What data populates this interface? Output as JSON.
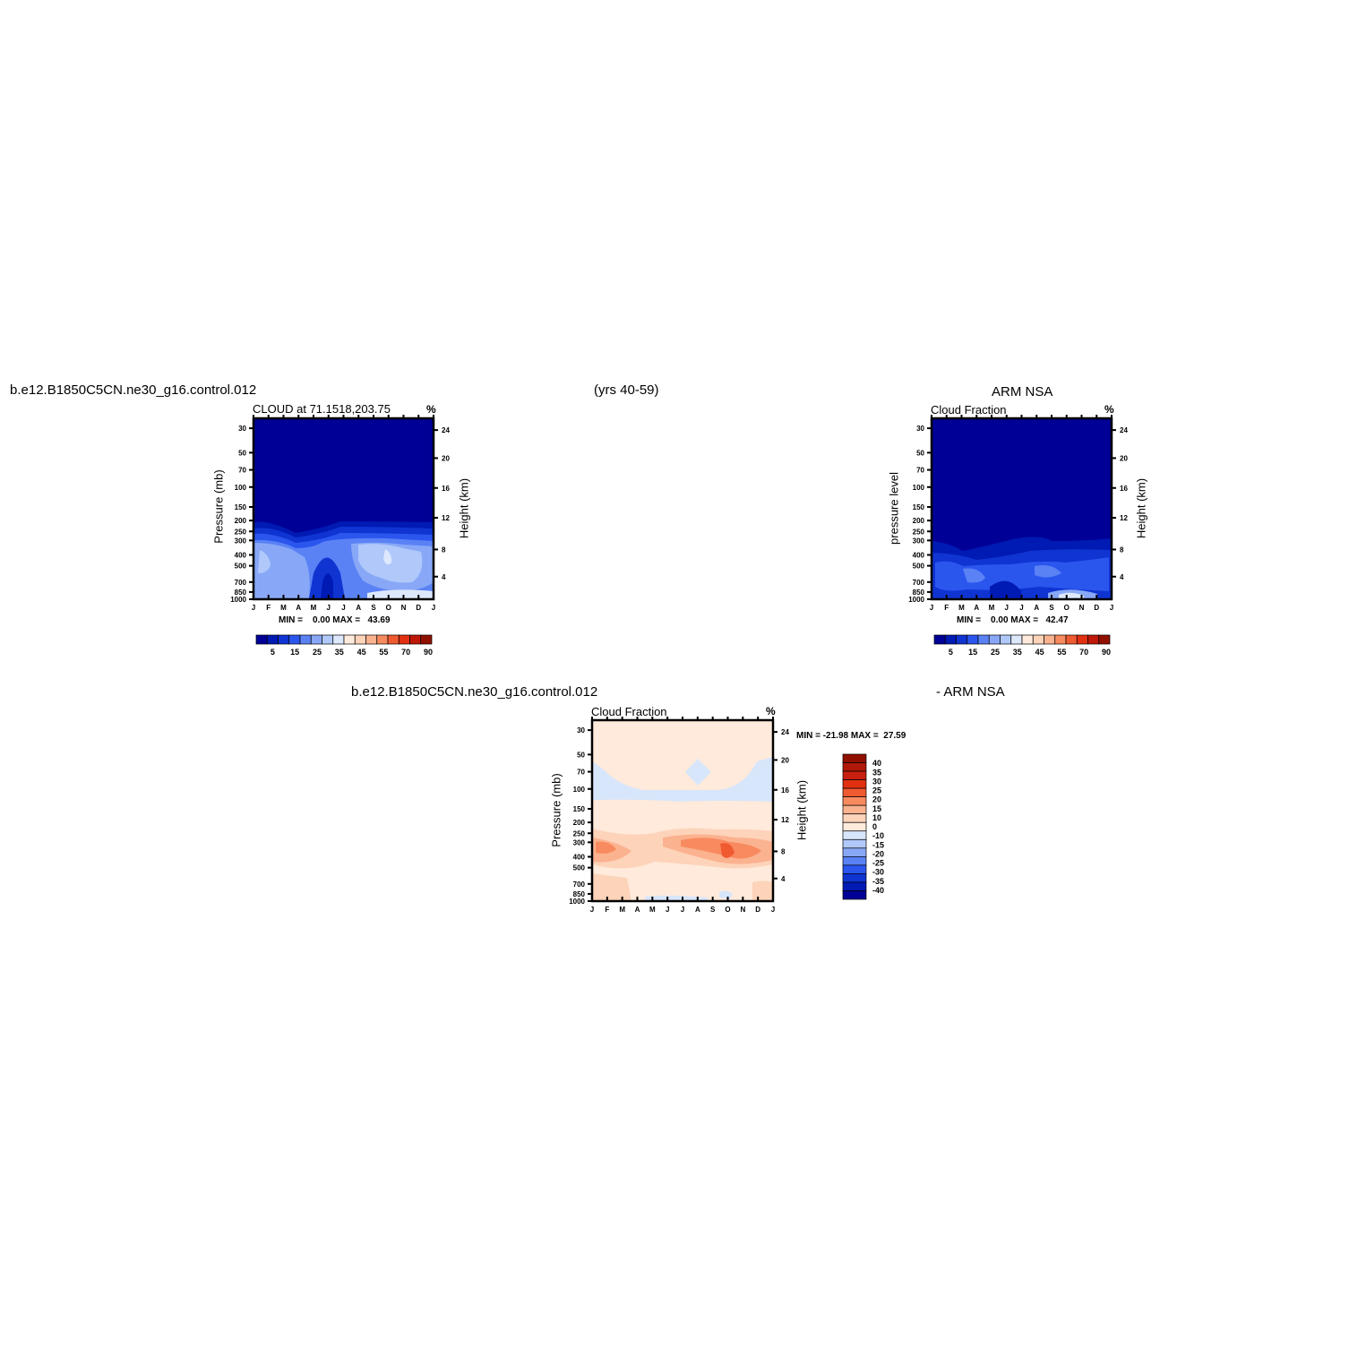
{
  "header": {
    "case_left": "b.e12.B1850C5CN.ne30_g16.control.012",
    "years": "(yrs 40-59)",
    "obs_right": "ARM  NSA",
    "diff_case": "b.e12.B1850C5CN.ne30_g16.control.012",
    "diff_obs": "- ARM  NSA"
  },
  "colors": {
    "dark": "#000096",
    "r1": "#001ab4",
    "r2": "#0f34d2",
    "r3": "#2a56ee",
    "r4": "#5a82f5",
    "r5": "#88a8f7",
    "r6": "#b0c8fa",
    "r7": "#dde8fc",
    "diffPos": [
      "#ffeadb",
      "#fdd3b9",
      "#fbb28f",
      "#f88a5f",
      "#f05a30",
      "#e03010"
    ],
    "diffNeg": [
      "#d8e6fb",
      "#b0c8fa",
      "#88a8f7",
      "#5a82f5"
    ]
  },
  "labels": {
    "top_left_title": "CLOUD at 71.1518,203.75",
    "top_right_title": "Cloud Fraction",
    "bottom_title": "Cloud Fraction",
    "unit": "%",
    "ylabel_pressure": "Pressure (mb)",
    "ylabel_plevel": "pressure level",
    "ylabel_height": "Height (km)",
    "stats_left": "MIN =    0.00 MAX =   43.69",
    "stats_right": "MIN =    0.00 MAX =   42.47",
    "stats_diff": "MIN = -21.98 MAX =  27.59"
  },
  "chart_data": [
    {
      "type": "heatmap",
      "title": "CLOUD at 71.1518,203.75",
      "ylabel": "Pressure (mb)",
      "ylabel_right": "Height (km)",
      "unit": "%",
      "x": [
        "J",
        "F",
        "M",
        "A",
        "M",
        "J",
        "J",
        "A",
        "S",
        "O",
        "N",
        "D",
        "J"
      ],
      "pressure_ticks": [
        30,
        50,
        70,
        100,
        150,
        200,
        250,
        300,
        400,
        500,
        700,
        850,
        1000
      ],
      "height_ticks": [
        24,
        20,
        16,
        12,
        8,
        4
      ],
      "min": 0.0,
      "max": 43.69,
      "colorbar_labels": [
        5,
        15,
        25,
        35,
        45,
        55,
        70,
        90
      ]
    },
    {
      "type": "heatmap",
      "title": "Cloud Fraction",
      "ylabel": "pressure level",
      "ylabel_right": "Height (km)",
      "unit": "%",
      "x": [
        "J",
        "F",
        "M",
        "A",
        "M",
        "J",
        "J",
        "A",
        "S",
        "O",
        "N",
        "D",
        "J"
      ],
      "pressure_ticks": [
        30,
        50,
        70,
        100,
        150,
        200,
        250,
        300,
        400,
        500,
        700,
        850,
        1000
      ],
      "height_ticks": [
        24,
        20,
        16,
        12,
        8,
        4
      ],
      "min": 0.0,
      "max": 42.47,
      "colorbar_labels": [
        5,
        15,
        25,
        35,
        45,
        55,
        70,
        90
      ]
    },
    {
      "type": "heatmap",
      "title": "Cloud Fraction",
      "ylabel": "Pressure (mb)",
      "ylabel_right": "Height (km)",
      "unit": "%",
      "x": [
        "J",
        "F",
        "M",
        "A",
        "M",
        "J",
        "J",
        "A",
        "S",
        "O",
        "N",
        "D",
        "J"
      ],
      "pressure_ticks": [
        30,
        50,
        70,
        100,
        150,
        200,
        250,
        300,
        400,
        500,
        700,
        850,
        1000
      ],
      "height_ticks": [
        24,
        20,
        16,
        12,
        8,
        4
      ],
      "min": -21.98,
      "max": 27.59,
      "colorbar_labels": [
        40,
        35,
        30,
        25,
        20,
        15,
        10,
        0,
        -10,
        -15,
        -20,
        -25,
        -30,
        -35,
        -40
      ]
    }
  ],
  "legend_colors": {
    "horizontal": [
      "#000096",
      "#001ab4",
      "#0f34d2",
      "#2a56ee",
      "#5a82f5",
      "#88a8f7",
      "#b0c8fa",
      "#dde8fc",
      "#ffeadb",
      "#fdd3b9",
      "#fbb28f",
      "#f88a5f",
      "#f05a30",
      "#e03010",
      "#c01808",
      "#901000"
    ],
    "vertical": [
      "#901000",
      "#b01808",
      "#c82010",
      "#e03010",
      "#f05a30",
      "#f88a5f",
      "#fbb28f",
      "#fdd3b9",
      "#ffeadb",
      "#d8e6fb",
      "#b0c8fa",
      "#88a8f7",
      "#5a82f5",
      "#2a56ee",
      "#0f34d2",
      "#001ab4",
      "#000096"
    ]
  }
}
